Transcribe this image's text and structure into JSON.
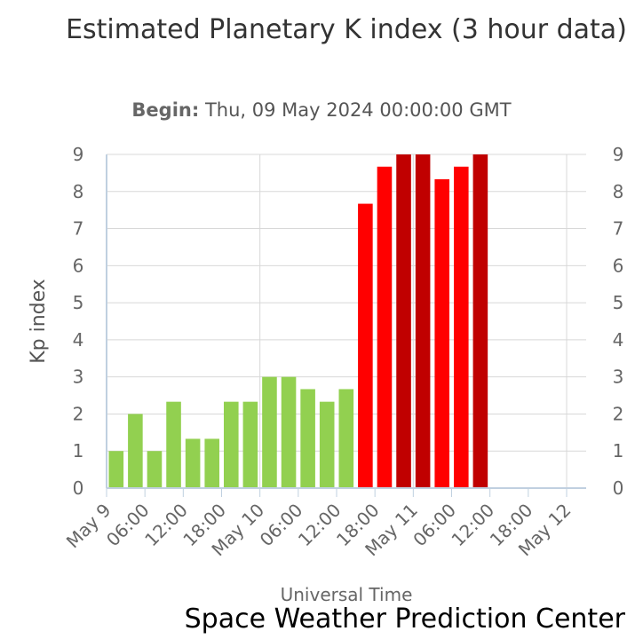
{
  "chart_data": {
    "type": "bar",
    "title": "Estimated Planetary K index (3 hour data)",
    "subtitle_label": "Begin:",
    "subtitle_value": "Thu, 09 May 2024 00:00:00 GMT",
    "xlabel": "Universal Time",
    "ylabel": "Kp index",
    "ylim": [
      0,
      9
    ],
    "yticks": [
      "0",
      "1",
      "2",
      "3",
      "4",
      "5",
      "6",
      "7",
      "8",
      "9"
    ],
    "xticks": [
      "May 9",
      "06:00",
      "12:00",
      "18:00",
      "May 10",
      "06:00",
      "12:00",
      "18:00",
      "May 11",
      "06:00",
      "12:00",
      "18:00",
      "May 12"
    ],
    "x_range_hours": [
      0,
      72
    ],
    "bar_hours": [
      1.5,
      4.5,
      7.5,
      10.5,
      13.5,
      16.5,
      19.5,
      22.5,
      25.5,
      28.5,
      31.5,
      34.5,
      37.5,
      40.5,
      43.5,
      46.5,
      49.5,
      52.5,
      55.5,
      58.5
    ],
    "values": [
      1.0,
      2.0,
      1.0,
      2.33,
      1.33,
      1.33,
      2.33,
      2.33,
      3.0,
      3.0,
      2.67,
      2.33,
      2.67,
      7.67,
      8.67,
      9.0,
      9.0,
      8.33,
      8.67,
      9.0
    ],
    "grid": true,
    "colors": {
      "low": "#92d050",
      "storm": "#ff0000",
      "extreme": "#c00000"
    }
  },
  "credit": "Space Weather Prediction Center"
}
